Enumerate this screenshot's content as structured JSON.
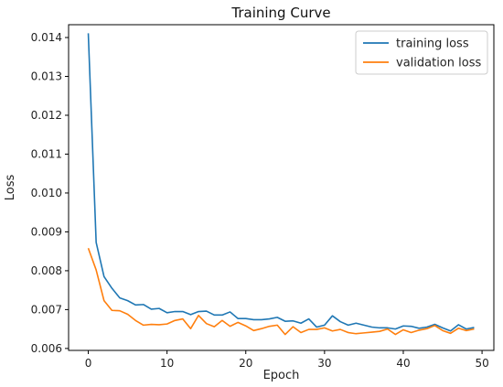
{
  "chart_data": {
    "type": "line",
    "title": "Training Curve",
    "xlabel": "Epoch",
    "ylabel": "Loss",
    "xlim": [
      -2.5,
      51.5
    ],
    "ylim": [
      0.00595,
      0.01433
    ],
    "xticks": [
      0,
      10,
      20,
      30,
      40,
      50
    ],
    "yticks": [
      0.006,
      0.007,
      0.008,
      0.009,
      0.01,
      0.011,
      0.012,
      0.013,
      0.014
    ],
    "ytick_labels": [
      "0.006",
      "0.007",
      "0.008",
      "0.009",
      "0.010",
      "0.011",
      "0.012",
      "0.013",
      "0.014"
    ],
    "grid": false,
    "legend": "top-right",
    "x": [
      0,
      1,
      2,
      3,
      4,
      5,
      6,
      7,
      8,
      9,
      10,
      11,
      12,
      13,
      14,
      15,
      16,
      17,
      18,
      19,
      20,
      21,
      22,
      23,
      24,
      25,
      26,
      27,
      28,
      29,
      30,
      31,
      32,
      33,
      34,
      35,
      36,
      37,
      38,
      39,
      40,
      41,
      42,
      43,
      44,
      45,
      46,
      47,
      48,
      49
    ],
    "series": [
      {
        "name": "training loss",
        "color": "#1f77b4",
        "values": [
          0.01411,
          0.00873,
          0.00785,
          0.00755,
          0.0073,
          0.00723,
          0.00712,
          0.00713,
          0.00701,
          0.00703,
          0.00692,
          0.00695,
          0.00695,
          0.00687,
          0.00695,
          0.00696,
          0.00686,
          0.00686,
          0.00694,
          0.00677,
          0.00677,
          0.00674,
          0.00674,
          0.00676,
          0.0068,
          0.0067,
          0.00671,
          0.00665,
          0.00676,
          0.00655,
          0.0066,
          0.00684,
          0.00669,
          0.0066,
          0.00665,
          0.0066,
          0.00655,
          0.00653,
          0.00653,
          0.0065,
          0.00658,
          0.00657,
          0.00652,
          0.00655,
          0.00662,
          0.00653,
          0.00645,
          0.00661,
          0.0065,
          0.00654
        ]
      },
      {
        "name": "validation loss",
        "color": "#ff7f0e",
        "values": [
          0.00858,
          0.00802,
          0.00723,
          0.00698,
          0.00697,
          0.00688,
          0.00672,
          0.0066,
          0.00662,
          0.00661,
          0.00663,
          0.00672,
          0.00676,
          0.00651,
          0.00685,
          0.00664,
          0.00656,
          0.00672,
          0.00657,
          0.00667,
          0.00658,
          0.00646,
          0.00651,
          0.00657,
          0.0066,
          0.00636,
          0.00656,
          0.00641,
          0.00649,
          0.00649,
          0.00653,
          0.00645,
          0.00649,
          0.00641,
          0.00638,
          0.0064,
          0.00642,
          0.00644,
          0.0065,
          0.00636,
          0.00648,
          0.00641,
          0.00647,
          0.00651,
          0.00659,
          0.00646,
          0.00639,
          0.00652,
          0.00646,
          0.0065
        ]
      }
    ]
  }
}
